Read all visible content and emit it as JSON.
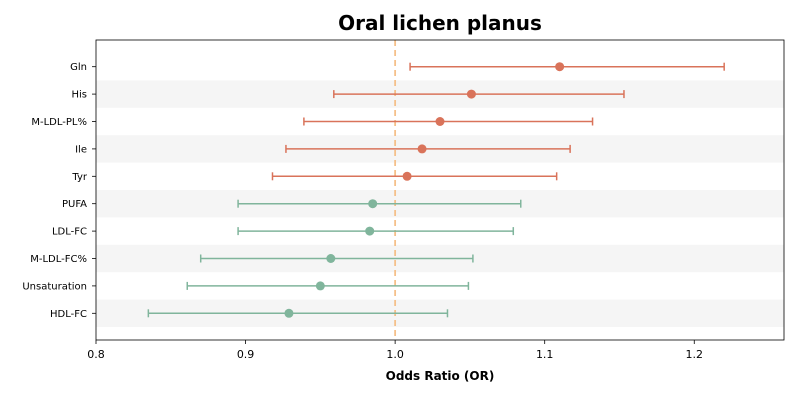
{
  "chart_data": {
    "type": "forest",
    "title": "Oral lichen planus",
    "xlabel": "Odds Ratio (OR)",
    "xlim": [
      0.8,
      1.26
    ],
    "xticks": [
      "0.8",
      "0.9",
      "1.0",
      "1.1",
      "1.2"
    ],
    "reference_line": 1.0,
    "categories": [
      "Gln",
      "His",
      "M-LDL-PL%",
      "Ile",
      "Tyr",
      "PUFA",
      "LDL-FC",
      "M-LDL-FC%",
      "Unsaturation",
      "HDL-FC"
    ],
    "or": [
      1.11,
      1.051,
      1.03,
      1.018,
      1.008,
      0.985,
      0.983,
      0.957,
      0.95,
      0.929
    ],
    "ci_low": [
      1.01,
      0.959,
      0.939,
      0.927,
      0.918,
      0.895,
      0.895,
      0.87,
      0.861,
      0.835
    ],
    "ci_high": [
      1.22,
      1.153,
      1.132,
      1.117,
      1.108,
      1.084,
      1.079,
      1.052,
      1.049,
      1.035
    ],
    "colors": {
      "positive": "#d9735a",
      "negative": "#80b59c",
      "reference": "#f5c08a",
      "band": "#f5f5f5"
    }
  }
}
